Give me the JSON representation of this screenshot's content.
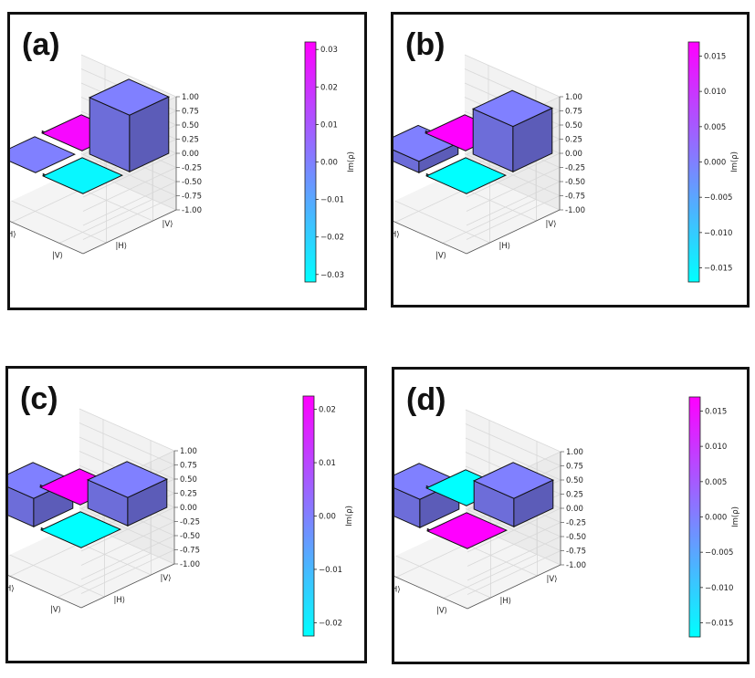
{
  "chart_data": [
    {
      "type": "bar3d",
      "panel_label": "(a)",
      "basis_labels": [
        "|H⟩",
        "|V⟩"
      ],
      "zlim": [
        -1.0,
        1.0
      ],
      "z_ticks": [
        "1.00",
        "0.75",
        "0.50",
        "0.25",
        "0.00",
        "-0.25",
        "-0.50",
        "-0.75",
        "-1.00"
      ],
      "colorbar": {
        "label": "Im(ρ)",
        "range": [
          -0.032,
          0.032
        ],
        "ticks": [
          "0.03",
          "0.02",
          "0.01",
          "0.00",
          "−0.01",
          "−0.02",
          "−0.03"
        ]
      },
      "bars": [
        {
          "row": "|H⟩",
          "col": "|H⟩",
          "height": 0.0,
          "im": 0.0
        },
        {
          "row": "|H⟩",
          "col": "|V⟩",
          "height": 0.0,
          "im": 0.03
        },
        {
          "row": "|V⟩",
          "col": "|H⟩",
          "height": 0.0,
          "im": -0.03
        },
        {
          "row": "|V⟩",
          "col": "|V⟩",
          "height": 1.0,
          "im": 0.0
        }
      ]
    },
    {
      "type": "bar3d",
      "panel_label": "(b)",
      "basis_labels": [
        "|H⟩",
        "|V⟩"
      ],
      "zlim": [
        -1.0,
        1.0
      ],
      "z_ticks": [
        "1.00",
        "0.75",
        "0.50",
        "0.25",
        "0.00",
        "-0.25",
        "-0.50",
        "-0.75",
        "-1.00"
      ],
      "colorbar": {
        "label": "Im(ρ)",
        "range": [
          -0.017,
          0.017
        ],
        "ticks": [
          "0.015",
          "0.010",
          "0.005",
          "0.000",
          "−0.005",
          "−0.010",
          "−0.015"
        ]
      },
      "bars": [
        {
          "row": "|H⟩",
          "col": "|H⟩",
          "height": 0.2,
          "im": 0.0
        },
        {
          "row": "|H⟩",
          "col": "|V⟩",
          "height": 0.0,
          "im": 0.017
        },
        {
          "row": "|V⟩",
          "col": "|H⟩",
          "height": 0.0,
          "im": -0.017
        },
        {
          "row": "|V⟩",
          "col": "|V⟩",
          "height": 0.8,
          "im": 0.0
        }
      ]
    },
    {
      "type": "bar3d",
      "panel_label": "(c)",
      "basis_labels": [
        "|H⟩",
        "|V⟩"
      ],
      "zlim": [
        -1.0,
        1.0
      ],
      "z_ticks": [
        "1.00",
        "0.75",
        "0.50",
        "0.25",
        "0.00",
        "-0.25",
        "-0.50",
        "-0.75",
        "-1.00"
      ],
      "colorbar": {
        "label": "Im(ρ)",
        "range": [
          -0.0225,
          0.0225
        ],
        "ticks": [
          "0.02",
          "0.01",
          "0.00",
          "−0.01",
          "−0.02"
        ]
      },
      "bars": [
        {
          "row": "|H⟩",
          "col": "|H⟩",
          "height": 0.5,
          "im": 0.0
        },
        {
          "row": "|H⟩",
          "col": "|V⟩",
          "height": 0.0,
          "im": 0.0225
        },
        {
          "row": "|V⟩",
          "col": "|H⟩",
          "height": 0.0,
          "im": -0.0225
        },
        {
          "row": "|V⟩",
          "col": "|V⟩",
          "height": 0.5,
          "im": 0.0
        }
      ]
    },
    {
      "type": "bar3d",
      "panel_label": "(d)",
      "basis_labels": [
        "|H⟩",
        "|V⟩"
      ],
      "zlim": [
        -1.0,
        1.0
      ],
      "z_ticks": [
        "1.00",
        "0.75",
        "0.50",
        "0.25",
        "0.00",
        "-0.25",
        "-0.50",
        "-0.75",
        "-1.00"
      ],
      "colorbar": {
        "label": "Im(ρ)",
        "range": [
          -0.017,
          0.017
        ],
        "ticks": [
          "0.015",
          "0.010",
          "0.005",
          "0.000",
          "−0.005",
          "−0.010",
          "−0.015"
        ]
      },
      "bars": [
        {
          "row": "|H⟩",
          "col": "|H⟩",
          "height": 0.5,
          "im": 0.0
        },
        {
          "row": "|H⟩",
          "col": "|V⟩",
          "height": 0.0,
          "im": -0.017
        },
        {
          "row": "|V⟩",
          "col": "|H⟩",
          "height": 0.0,
          "im": 0.017
        },
        {
          "row": "|V⟩",
          "col": "|V⟩",
          "height": 0.5,
          "im": 0.0
        }
      ]
    }
  ]
}
